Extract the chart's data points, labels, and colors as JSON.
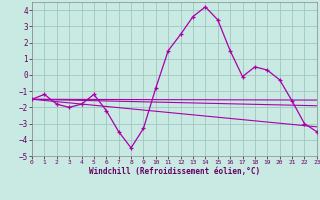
{
  "xlabel": "Windchill (Refroidissement éolien,°C)",
  "xlim": [
    0,
    23
  ],
  "ylim": [
    -5,
    4.5
  ],
  "xticks": [
    0,
    1,
    2,
    3,
    4,
    5,
    6,
    7,
    8,
    9,
    10,
    11,
    12,
    13,
    14,
    15,
    16,
    17,
    18,
    19,
    20,
    21,
    22,
    23
  ],
  "yticks": [
    -5,
    -4,
    -3,
    -2,
    -1,
    0,
    1,
    2,
    3,
    4
  ],
  "bg_color": "#c8eae2",
  "grid_color": "#a0c8c0",
  "line_color": "#aa00aa",
  "windchill_x": [
    0,
    1,
    2,
    3,
    4,
    5,
    6,
    7,
    8,
    9,
    10,
    11,
    12,
    13,
    14,
    15,
    16,
    17,
    18,
    19,
    20,
    21,
    22,
    23
  ],
  "windchill_y": [
    -1.5,
    -1.2,
    -1.8,
    -2.0,
    -1.8,
    -1.2,
    -2.2,
    -3.5,
    -4.5,
    -3.3,
    -0.8,
    1.5,
    2.5,
    3.6,
    4.2,
    3.4,
    1.5,
    -0.1,
    0.5,
    0.3,
    -0.3,
    -1.6,
    -3.0,
    -3.5
  ],
  "trend1_y0": -1.5,
  "trend1_y1": -1.55,
  "trend2_y0": -1.5,
  "trend2_y1": -1.9,
  "trend3_y0": -1.5,
  "trend3_y1": -3.2
}
